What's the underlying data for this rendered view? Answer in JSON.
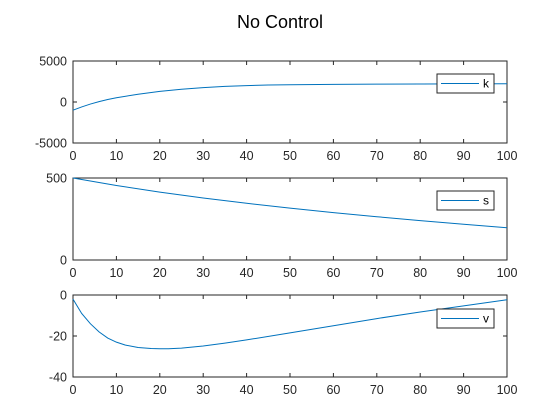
{
  "figure": {
    "title": "No Control"
  },
  "colors": {
    "series": "#0072BD",
    "axis": "#262626",
    "background": "#ffffff"
  },
  "chart_data": [
    {
      "type": "line",
      "title": "",
      "xlabel": "",
      "ylabel": "",
      "xlim": [
        0,
        100
      ],
      "ylim": [
        -5000,
        5000
      ],
      "xticks": [
        0,
        10,
        20,
        30,
        40,
        50,
        60,
        70,
        80,
        90,
        100
      ],
      "yticks": [
        -5000,
        0,
        5000
      ],
      "grid": false,
      "legend_position": "top-right",
      "series": [
        {
          "name": "k",
          "x": [
            0,
            2,
            4,
            6,
            8,
            10,
            15,
            20,
            25,
            30,
            35,
            40,
            45,
            50,
            60,
            70,
            80,
            90,
            100
          ],
          "y": [
            -1000,
            -600,
            -250,
            50,
            300,
            520,
            950,
            1300,
            1550,
            1750,
            1900,
            2000,
            2070,
            2110,
            2150,
            2180,
            2200,
            2210,
            2220
          ]
        }
      ]
    },
    {
      "type": "line",
      "title": "",
      "xlabel": "",
      "ylabel": "",
      "xlim": [
        0,
        100
      ],
      "ylim": [
        0,
        500
      ],
      "xticks": [
        0,
        10,
        20,
        30,
        40,
        50,
        60,
        70,
        80,
        90,
        100
      ],
      "yticks": [
        0,
        500
      ],
      "grid": false,
      "legend_position": "top-right",
      "series": [
        {
          "name": "s",
          "x": [
            0,
            10,
            20,
            30,
            40,
            50,
            60,
            70,
            80,
            90,
            100
          ],
          "y": [
            500,
            454,
            414,
            378,
            346,
            316,
            289,
            264,
            240,
            218,
            197
          ]
        }
      ]
    },
    {
      "type": "line",
      "title": "",
      "xlabel": "",
      "ylabel": "",
      "xlim": [
        0,
        100
      ],
      "ylim": [
        -40,
        0
      ],
      "xticks": [
        0,
        10,
        20,
        30,
        40,
        50,
        60,
        70,
        80,
        90,
        100
      ],
      "yticks": [
        -40,
        -20,
        0
      ],
      "grid": false,
      "legend_position": "top-right",
      "series": [
        {
          "name": "v",
          "x": [
            0,
            2,
            4,
            6,
            8,
            10,
            12,
            15,
            18,
            20,
            22,
            25,
            30,
            35,
            40,
            50,
            60,
            70,
            80,
            90,
            100
          ],
          "y": [
            -2,
            -9,
            -14,
            -18,
            -21,
            -23,
            -24.4,
            -25.6,
            -26.1,
            -26.2,
            -26.2,
            -25.9,
            -24.9,
            -23.5,
            -21.9,
            -18.5,
            -15,
            -11.5,
            -8.3,
            -5.3,
            -2.3
          ]
        }
      ]
    }
  ]
}
